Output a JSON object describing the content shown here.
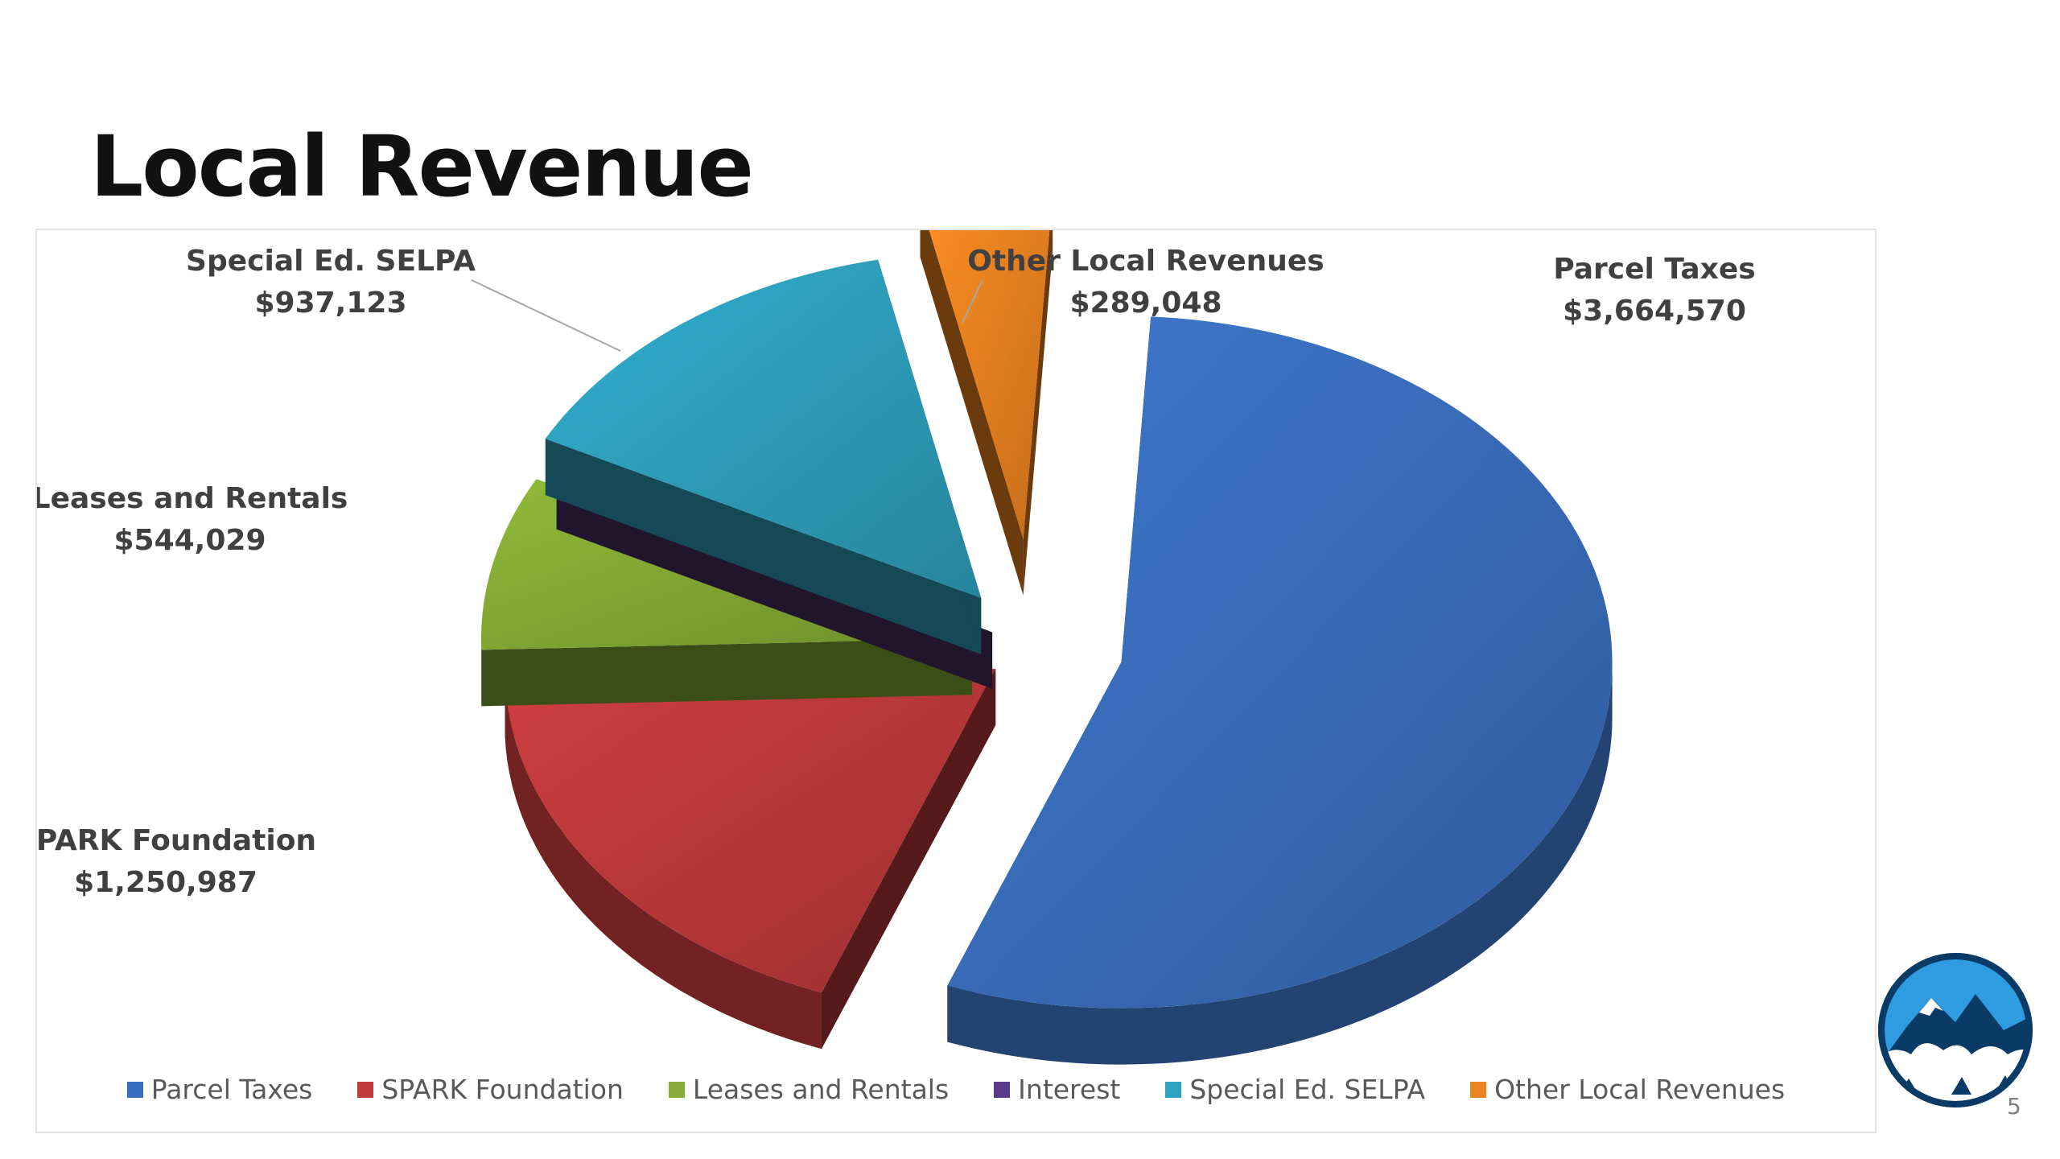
{
  "slide": {
    "title": "Local Revenue",
    "page_number": "5"
  },
  "logo": {
    "icon": "mountain-cloud-logo"
  },
  "chart_data": {
    "type": "pie",
    "style": "3d-exploded",
    "legend_position": "bottom",
    "categories": [
      "Parcel Taxes",
      "SPARK Foundation",
      "Leases and Rentals",
      "Interest",
      "Special Ed. SELPA",
      "Other Local Revenues"
    ],
    "values": [
      3664570,
      1250987,
      544029,
      0,
      937123,
      289048
    ],
    "data_labels": [
      {
        "name": "Parcel Taxes",
        "value": "$3,664,570"
      },
      {
        "name": "SPARK Foundation",
        "value": "$1,250,987"
      },
      {
        "name": "Leases and Rentals",
        "value": "$544,029"
      },
      {
        "name": "Special Ed. SELPA",
        "value": "$937,123"
      },
      {
        "name": "Other Local Revenues",
        "value": "$289,048"
      }
    ],
    "colors": [
      "#3a6fbf",
      "#c0393b",
      "#86ad35",
      "#4a2f66",
      "#2ea2c0",
      "#ee8420"
    ],
    "legend": [
      {
        "label": "Parcel Taxes",
        "color": "#3a6fbf"
      },
      {
        "label": "SPARK Foundation",
        "color": "#c0393b"
      },
      {
        "label": "Leases and Rentals",
        "color": "#86ad35"
      },
      {
        "label": "Interest",
        "color": "#5b3a8a"
      },
      {
        "label": "Special Ed. SELPA",
        "color": "#2ea2c0"
      },
      {
        "label": "Other Local Revenues",
        "color": "#ee8420"
      }
    ]
  }
}
